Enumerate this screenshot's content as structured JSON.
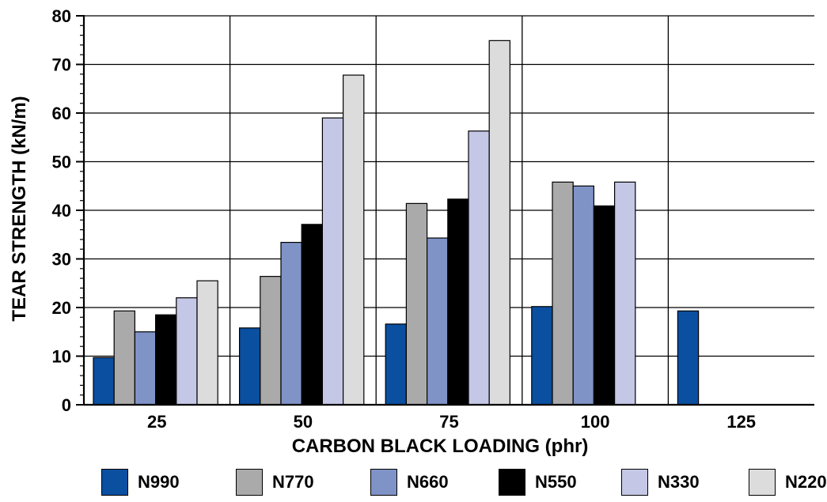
{
  "chart_data": {
    "type": "bar",
    "title": "",
    "xlabel": "CARBON BLACK LOADING (phr)",
    "ylabel": "TEAR STRENGTH (kN/m)",
    "ylim": [
      0,
      80
    ],
    "yticks": [
      "0",
      "10",
      "20",
      "30",
      "40",
      "50",
      "60",
      "70",
      "80"
    ],
    "grid": true,
    "legend_position": "bottom",
    "categories": [
      "25",
      "50",
      "75",
      "100",
      "125"
    ],
    "series": [
      {
        "name": "N990",
        "color": "#0a4fa0",
        "values": [
          9.7,
          15.8,
          16.6,
          20.2,
          19.3
        ]
      },
      {
        "name": "N770",
        "color": "#aaaaaa",
        "values": [
          19.3,
          26.4,
          41.4,
          45.8,
          null
        ]
      },
      {
        "name": "N660",
        "color": "#7f93c7",
        "values": [
          15.0,
          33.4,
          34.3,
          45.0,
          null
        ]
      },
      {
        "name": "N550",
        "color": "#000000",
        "values": [
          18.5,
          37.1,
          42.3,
          40.9,
          null
        ]
      },
      {
        "name": "N330",
        "color": "#c4c8e6",
        "values": [
          22.0,
          59.0,
          56.3,
          45.8,
          null
        ]
      },
      {
        "name": "N220",
        "color": "#dcdcdc",
        "values": [
          25.5,
          67.8,
          74.9,
          null,
          null
        ]
      }
    ]
  }
}
